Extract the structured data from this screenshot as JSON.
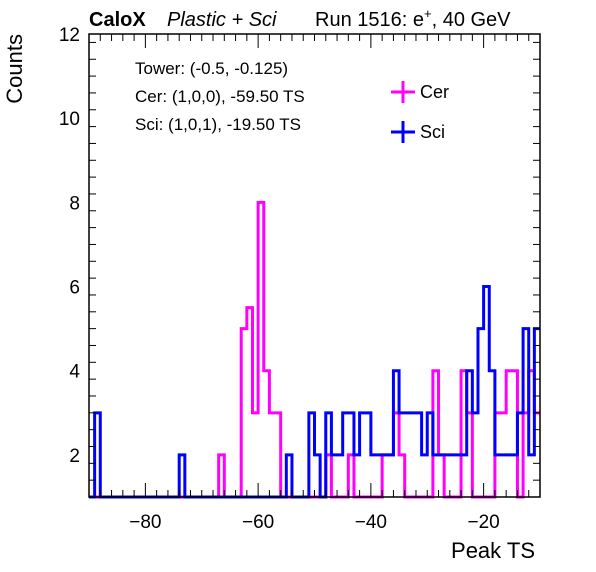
{
  "header": {
    "brand": "CaloX",
    "subtitle": "Plastic + Sci",
    "run_prefix": "Run 1516: e",
    "run_sup": "+",
    "run_suffix": ", 40 GeV"
  },
  "info": {
    "tower": "Tower: (-0.5, -0.125)",
    "cer": "Cer: (1,0,0), -59.50 TS",
    "sci": "Sci: (1,0,1), -19.50 TS"
  },
  "legend": {
    "cer_label": "Cer",
    "sci_label": "Sci",
    "placement": "top-right"
  },
  "colors": {
    "cer": "#ff00ff",
    "sci": "#0000ff"
  },
  "chart_data": {
    "type": "histogram-step",
    "xlabel": "Peak TS",
    "ylabel": "Counts",
    "xlim": [
      -90,
      -10
    ],
    "ylim": [
      1,
      12
    ],
    "bin_width": 1,
    "x_ticks": [
      -80,
      -60,
      -40,
      -20
    ],
    "y_ticks": [
      2,
      4,
      6,
      8,
      10,
      12
    ],
    "grid": false,
    "series": [
      {
        "name": "Cer",
        "bins": [
          [
            -67,
            2
          ],
          [
            -63,
            5
          ],
          [
            -62,
            5.5
          ],
          [
            -61,
            3
          ],
          [
            -60,
            8
          ],
          [
            -59,
            4
          ],
          [
            -58,
            3
          ],
          [
            -57,
            3
          ],
          [
            -48,
            2
          ],
          [
            -44,
            2
          ],
          [
            -38,
            2
          ],
          [
            -37,
            2
          ],
          [
            -36,
            3
          ],
          [
            -35,
            2
          ],
          [
            -29,
            4
          ],
          [
            -28,
            2
          ],
          [
            -24,
            4
          ],
          [
            -23,
            3
          ],
          [
            -18,
            3
          ],
          [
            -17,
            3
          ],
          [
            -16,
            4
          ],
          [
            -15,
            4
          ],
          [
            -13,
            3
          ],
          [
            -12,
            4
          ],
          [
            -11,
            3
          ]
        ]
      },
      {
        "name": "Sci",
        "bins": [
          [
            -89,
            3
          ],
          [
            -74,
            2
          ],
          [
            -66,
            1
          ],
          [
            -65,
            1
          ],
          [
            -64,
            1
          ],
          [
            -63,
            1
          ],
          [
            -62,
            1
          ],
          [
            -61,
            1
          ],
          [
            -55,
            2
          ],
          [
            -51,
            3
          ],
          [
            -50,
            2
          ],
          [
            -48,
            3
          ],
          [
            -47,
            2
          ],
          [
            -46,
            2
          ],
          [
            -45,
            3
          ],
          [
            -44,
            3
          ],
          [
            -43,
            2
          ],
          [
            -42,
            3
          ],
          [
            -41,
            3
          ],
          [
            -40,
            2
          ],
          [
            -39,
            2
          ],
          [
            -38,
            2
          ],
          [
            -37,
            2
          ],
          [
            -36,
            4
          ],
          [
            -35,
            3
          ],
          [
            -34,
            3
          ],
          [
            -33,
            3
          ],
          [
            -32,
            3
          ],
          [
            -31,
            2
          ],
          [
            -30,
            3
          ],
          [
            -29,
            2
          ],
          [
            -28,
            2
          ],
          [
            -27,
            2
          ],
          [
            -26,
            2
          ],
          [
            -25,
            2
          ],
          [
            -24,
            2
          ],
          [
            -23,
            4
          ],
          [
            -22,
            3
          ],
          [
            -21,
            5
          ],
          [
            -20,
            6
          ],
          [
            -19,
            4
          ],
          [
            -18,
            2
          ],
          [
            -17,
            2
          ],
          [
            -16,
            2
          ],
          [
            -15,
            2
          ],
          [
            -14,
            3
          ],
          [
            -13,
            5
          ],
          [
            -12,
            2
          ],
          [
            -11,
            5
          ]
        ]
      }
    ]
  }
}
